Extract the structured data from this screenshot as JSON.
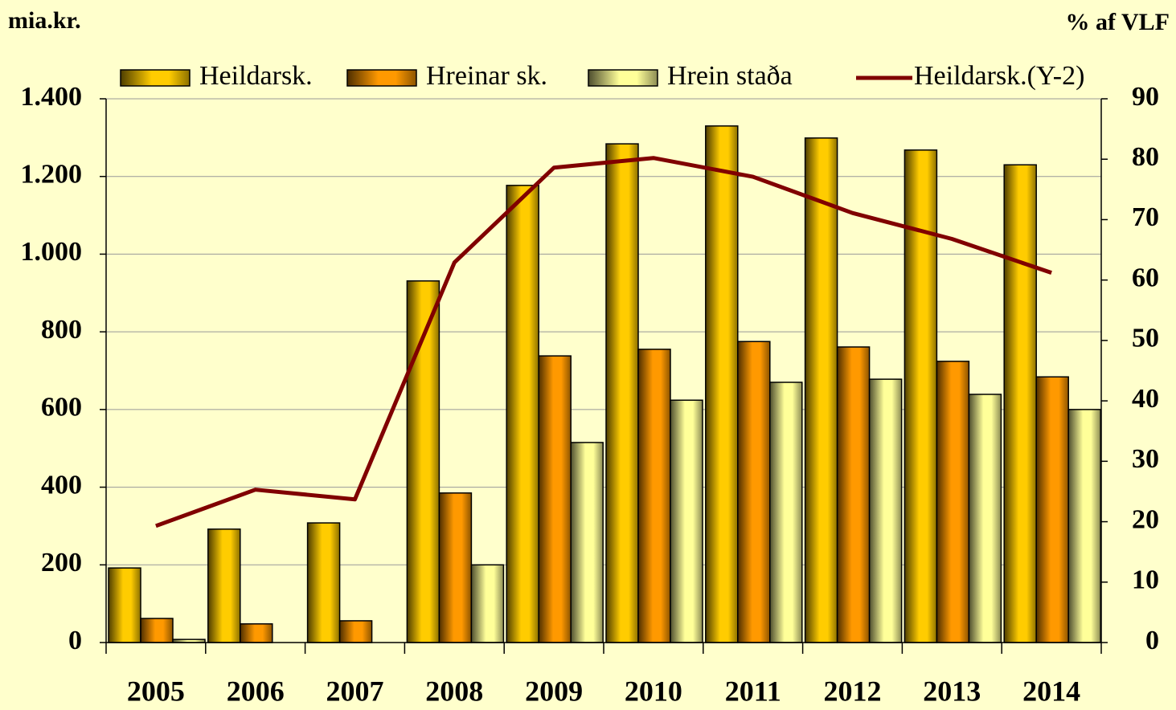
{
  "chart_data": {
    "type": "bar",
    "y_label": "mia.kr.",
    "y2_label": "% af VLF",
    "categories": [
      "2005",
      "2006",
      "2007",
      "2008",
      "2009",
      "2010",
      "2011",
      "2012",
      "2013",
      "2014"
    ],
    "series": [
      {
        "name": "Heildarsk.",
        "color": "#FFCC00",
        "values": [
          192,
          292,
          308,
          931,
          1177,
          1284,
          1330,
          1299,
          1268,
          1230
        ]
      },
      {
        "name": "Hreinar sk.",
        "color": "#FF9900",
        "values": [
          62,
          48,
          56,
          385,
          738,
          755,
          775,
          761,
          724,
          684
        ]
      },
      {
        "name": "Hrein staða",
        "color": "#FFFF99",
        "values": [
          8,
          null,
          null,
          200,
          515,
          624,
          670,
          678,
          639,
          600
        ]
      },
      {
        "name": "Heildarsk.(Y-2)",
        "color": "#800000",
        "type": "line",
        "axis": "y2",
        "values": [
          19.3,
          25.3,
          23.7,
          62.9,
          78.6,
          80.2,
          77.1,
          71.1,
          66.8,
          61.2
        ]
      }
    ],
    "ylim": [
      0,
      1400
    ],
    "yticks": [
      0,
      200,
      400,
      600,
      800,
      {
        "value": 1000,
        "label": "1.000"
      },
      {
        "value": 1200,
        "label": "1.200"
      },
      {
        "value": 1400,
        "label": "1.400"
      }
    ],
    "y2lim": [
      0,
      90
    ],
    "y2ticks": [
      0,
      10,
      20,
      30,
      40,
      50,
      60,
      70,
      80,
      90
    ],
    "grid": true,
    "legend": "top"
  }
}
